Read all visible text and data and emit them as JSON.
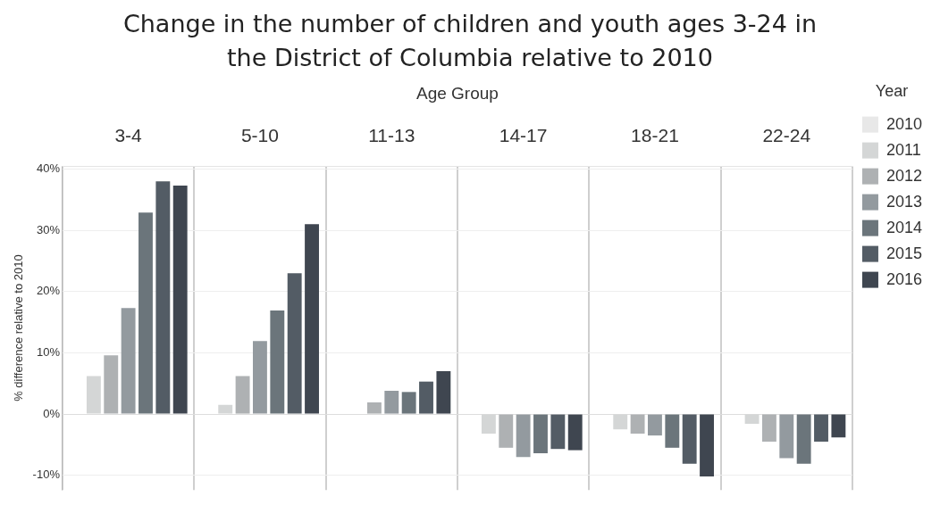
{
  "chart_data": {
    "type": "bar",
    "title": "Change in the number of children and youth ages 3-24 in the District of Columbia relative to 2010",
    "xlabel": "Age Group",
    "ylabel": "% difference relative to 2010",
    "legend_title": "Year",
    "categories": [
      "3-4",
      "5-10",
      "11-13",
      "14-17",
      "18-21",
      "22-24"
    ],
    "series": [
      {
        "name": "2010",
        "color": "#e8e8e8",
        "values": [
          0,
          0,
          0,
          0,
          0,
          0
        ]
      },
      {
        "name": "2011",
        "color": "#d4d6d6",
        "values": [
          6.2,
          1.5,
          0,
          -3.2,
          -2.5,
          -1.6
        ]
      },
      {
        "name": "2012",
        "color": "#aeb1b3",
        "values": [
          9.6,
          6.2,
          1.9,
          -5.5,
          -3.2,
          -4.5
        ]
      },
      {
        "name": "2013",
        "color": "#939a9f",
        "values": [
          17.3,
          11.9,
          3.8,
          -7.0,
          -3.5,
          -7.2
        ]
      },
      {
        "name": "2014",
        "color": "#6b757b",
        "values": [
          32.9,
          16.9,
          3.6,
          -6.4,
          -5.5,
          -8.1
        ]
      },
      {
        "name": "2015",
        "color": "#535c65",
        "values": [
          38.0,
          23.0,
          5.3,
          -5.7,
          -8.1,
          -4.5
        ]
      },
      {
        "name": "2016",
        "color": "#3f4650",
        "values": [
          37.3,
          31.0,
          7.0,
          -5.9,
          -10.2,
          -3.8
        ]
      }
    ],
    "ylim": [
      -12.4,
      40.5
    ],
    "yticks": [
      {
        "value": -10,
        "label": "-10%"
      },
      {
        "value": 0,
        "label": "0%"
      },
      {
        "value": 10,
        "label": "10%"
      },
      {
        "value": 20,
        "label": "20%"
      },
      {
        "value": 30,
        "label": "30%"
      },
      {
        "value": 40,
        "label": "40%"
      }
    ],
    "grid": true,
    "legend": "top right"
  }
}
